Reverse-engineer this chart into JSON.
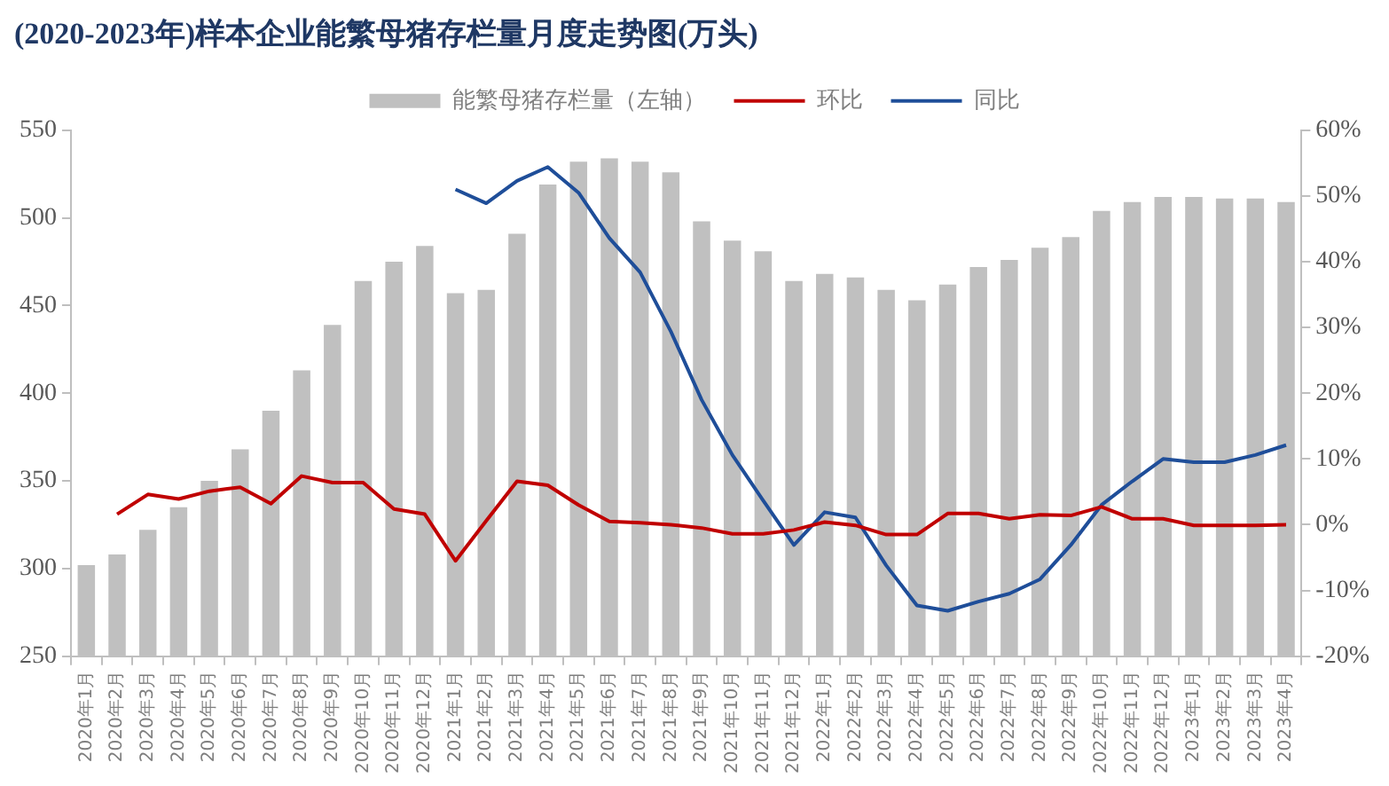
{
  "chart_data": {
    "type": "bar",
    "title": "(2020-2023年)样本企业能繁母猪存栏量月度走势图(万头)",
    "categories": [
      "2020年1月",
      "2020年2月",
      "2020年3月",
      "2020年4月",
      "2020年5月",
      "2020年6月",
      "2020年7月",
      "2020年8月",
      "2020年9月",
      "2020年10月",
      "2020年11月",
      "2020年12月",
      "2021年1月",
      "2021年2月",
      "2021年3月",
      "2021年4月",
      "2021年5月",
      "2021年6月",
      "2021年7月",
      "2021年8月",
      "2021年9月",
      "2021年10月",
      "2021年11月",
      "2021年12月",
      "2022年1月",
      "2022年2月",
      "2022年3月",
      "2022年4月",
      "2022年5月",
      "2022年6月",
      "2022年7月",
      "2022年8月",
      "2022年9月",
      "2022年10月",
      "2022年11月",
      "2022年12月",
      "2023年1月",
      "2023年2月",
      "2023年3月",
      "2023年4月"
    ],
    "series": [
      {
        "name": "能繁母猪存栏量（左轴）",
        "color": "#c0c0c0",
        "values": [
          302,
          308,
          322,
          335,
          350,
          368,
          390,
          413,
          439,
          464,
          475,
          484,
          457,
          459,
          491,
          519,
          532,
          534,
          532,
          526,
          498,
          487,
          481,
          464,
          468,
          466,
          459,
          453,
          462,
          472,
          476,
          483,
          489,
          504,
          509,
          512,
          512,
          511,
          511,
          509
        ]
      },
      {
        "name": "环比",
        "type": "line",
        "axis": "y2",
        "color": "#c00000",
        "values": [
          null,
          1.6,
          4.6,
          3.9,
          5.1,
          5.7,
          3.2,
          7.4,
          6.4,
          6.4,
          2.4,
          1.6,
          -5.5,
          0.6,
          6.6,
          6.0,
          3.0,
          0.5,
          0.3,
          0,
          -0.5,
          -1.4,
          -1.4,
          -0.8,
          0.4,
          -0.1,
          -1.5,
          -1.5,
          1.7,
          1.7,
          0.9,
          1.5,
          1.4,
          2.7,
          0.9,
          0.9,
          -0.1,
          -0.1,
          -0.1,
          0
        ]
      },
      {
        "name": "同比",
        "type": "line",
        "axis": "y2",
        "color": "#1f4e99",
        "values": [
          null,
          null,
          null,
          null,
          null,
          null,
          null,
          null,
          null,
          null,
          null,
          null,
          51.0,
          48.9,
          52.3,
          54.4,
          50.5,
          43.6,
          38.4,
          29.4,
          19.0,
          10.6,
          3.7,
          -3.1,
          1.9,
          1.1,
          -6.2,
          -12.3,
          -13.1,
          -11.7,
          -10.5,
          -8.3,
          -3.1,
          3.0,
          6.6,
          10.0,
          9.5,
          9.5,
          10.6,
          12.1
        ]
      }
    ],
    "ylim": [
      250,
      550
    ],
    "yticks": [
      250,
      300,
      350,
      400,
      450,
      500,
      550
    ],
    "y2lim": [
      -20,
      60
    ],
    "y2ticks": [
      {
        "value": -20,
        "label": "-20%"
      },
      {
        "value": -10,
        "label": "-10%"
      },
      {
        "value": 0,
        "label": "0%"
      },
      {
        "value": 10,
        "label": "10%"
      },
      {
        "value": 20,
        "label": "20%"
      },
      {
        "value": 30,
        "label": "30%"
      },
      {
        "value": 40,
        "label": "40%"
      },
      {
        "value": 50,
        "label": "50%"
      },
      {
        "value": 60,
        "label": "60%"
      }
    ],
    "legend": "top",
    "grid": false,
    "marker": "none",
    "line_style": "solid"
  }
}
